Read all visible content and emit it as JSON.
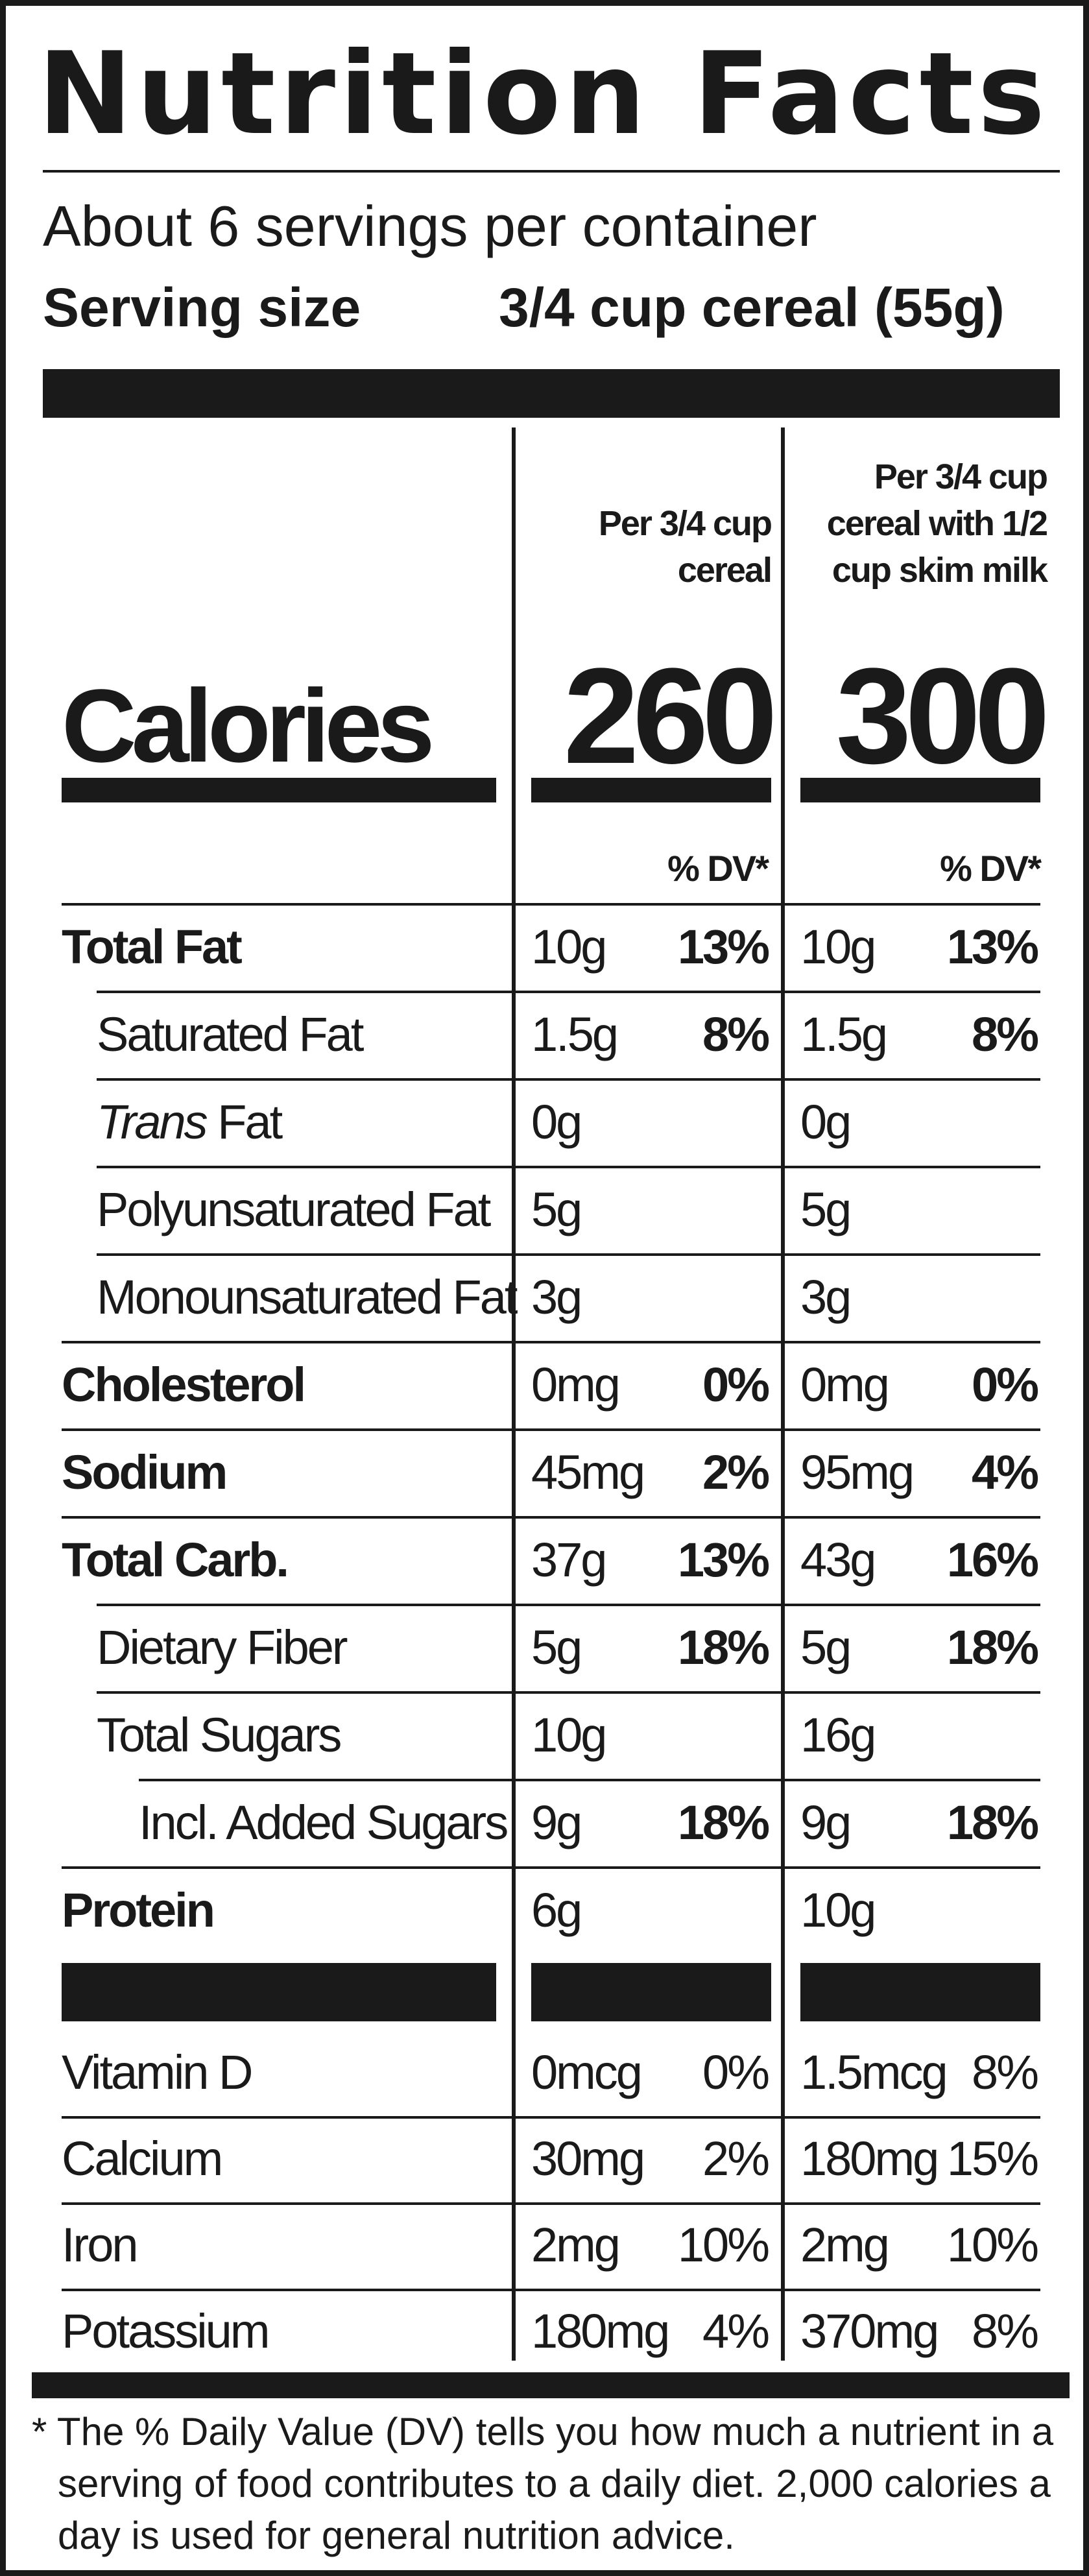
{
  "title": "Nutrition Facts",
  "servings_per_container": "About 6 servings per container",
  "serving_size_label": "Serving size",
  "serving_size_value": "3/4 cup cereal (55g)",
  "columns": {
    "col1_header": [
      "Per 3/4 cup",
      "cereal"
    ],
    "col2_header": [
      "Per 3/4 cup",
      "cereal with 1/2",
      "cup skim milk"
    ]
  },
  "calories": {
    "label": "Calories",
    "col1": "260",
    "col2": "300"
  },
  "dv_header": {
    "col1": "% DV*",
    "col2": "% DV*"
  },
  "nutrients": [
    {
      "label": "Total Fat",
      "bold": true,
      "indent": 0,
      "c1": "10g",
      "p1": "13%",
      "c2": "10g",
      "p2": "13%"
    },
    {
      "label": "Saturated Fat",
      "bold": false,
      "indent": 1,
      "c1": "1.5g",
      "p1": "8%",
      "c2": "1.5g",
      "p2": "8%"
    },
    {
      "label": "Fat",
      "label_prefix": "Trans",
      "bold": false,
      "indent": 1,
      "c1": "0g",
      "p1": "",
      "c2": "0g",
      "p2": ""
    },
    {
      "label": "Polyunsaturated Fat",
      "bold": false,
      "indent": 1,
      "c1": "5g",
      "p1": "",
      "c2": "5g",
      "p2": ""
    },
    {
      "label": "Monounsaturated Fat",
      "bold": false,
      "indent": 1,
      "c1": "3g",
      "p1": "",
      "c2": "3g",
      "p2": ""
    },
    {
      "label": "Cholesterol",
      "bold": true,
      "indent": 0,
      "c1": "0mg",
      "p1": "0%",
      "c2": "0mg",
      "p2": "0%"
    },
    {
      "label": "Sodium",
      "bold": true,
      "indent": 0,
      "c1": "45mg",
      "p1": "2%",
      "c2": "95mg",
      "p2": "4%"
    },
    {
      "label": "Total Carb.",
      "bold": true,
      "indent": 0,
      "c1": "37g",
      "p1": "13%",
      "c2": "43g",
      "p2": "16%"
    },
    {
      "label": "Dietary Fiber",
      "bold": false,
      "indent": 1,
      "c1": "5g",
      "p1": "18%",
      "c2": "5g",
      "p2": "18%"
    },
    {
      "label": "Total Sugars",
      "bold": false,
      "indent": 1,
      "c1": "10g",
      "p1": "",
      "c2": "16g",
      "p2": ""
    },
    {
      "label": "Incl. Added Sugars",
      "bold": false,
      "indent": 2,
      "c1": "9g",
      "p1": "18%",
      "c2": "9g",
      "p2": "18%"
    },
    {
      "label": "Protein",
      "bold": true,
      "indent": 0,
      "c1": "6g",
      "p1": "",
      "c2": "10g",
      "p2": ""
    }
  ],
  "vitamins": [
    {
      "label": "Vitamin D",
      "c1": "0mcg",
      "p1": "0%",
      "c2": "1.5mcg",
      "p2": "8%"
    },
    {
      "label": "Calcium",
      "c1": "30mg",
      "p1": "2%",
      "c2": "180mg",
      "p2": "15%"
    },
    {
      "label": "Iron",
      "c1": "2mg",
      "p1": "10%",
      "c2": "2mg",
      "p2": "10%"
    },
    {
      "label": "Potassium",
      "c1": "180mg",
      "p1": "4%",
      "c2": "370mg",
      "p2": "8%"
    }
  ],
  "footnote": [
    "* The % Daily Value (DV) tells you how much a nutrient in a",
    "serving of food contributes to a daily diet. 2,000 calories a",
    "day is used for general nutrition advice."
  ]
}
